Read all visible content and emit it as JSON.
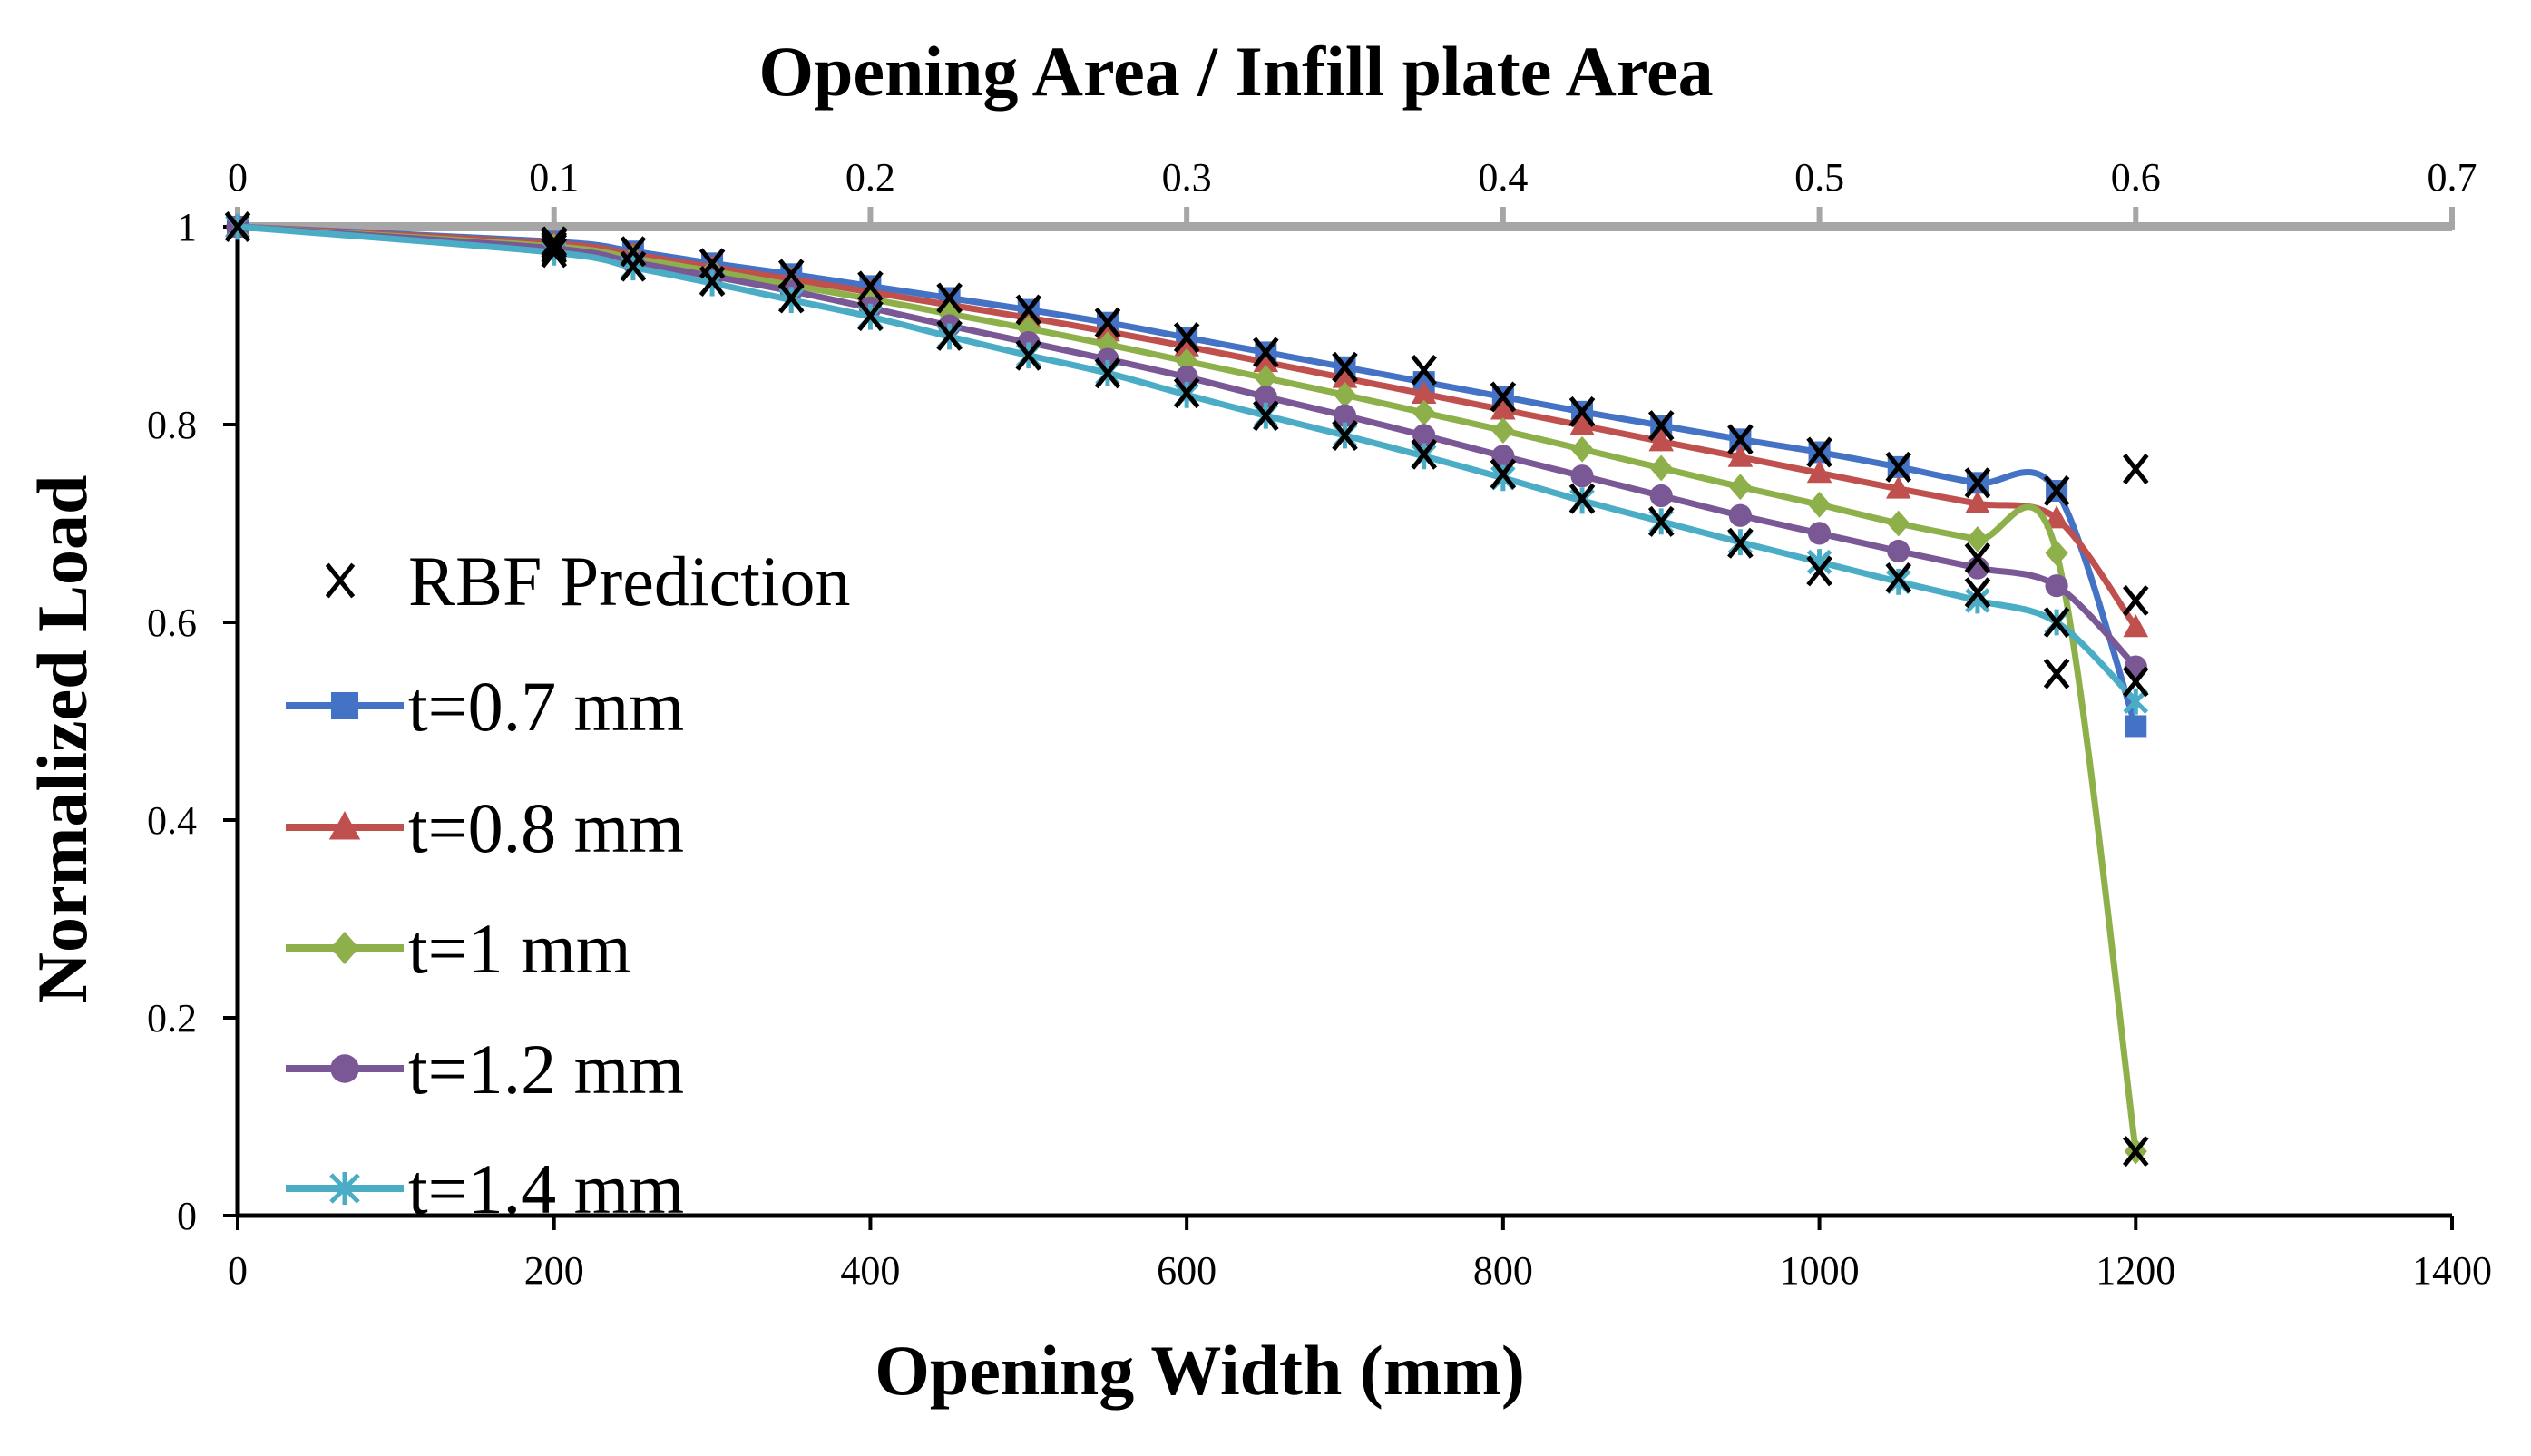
{
  "chart_data": {
    "type": "line",
    "title": "",
    "xlabel": "Opening Width (mm)",
    "ylabel": "Normalized Load",
    "x2label": "Opening Area / Infill plate Area",
    "xlim": [
      0,
      1400
    ],
    "ylim": [
      0,
      1
    ],
    "x2lim": [
      0,
      0.7
    ],
    "x_ticks": [
      "0",
      "200",
      "400",
      "600",
      "800",
      "1000",
      "1200",
      "1400"
    ],
    "y_ticks": [
      "0",
      "0.2",
      "0.4",
      "0.6",
      "0.8",
      "1"
    ],
    "x2_ticks": [
      "0",
      "0.1",
      "0.2",
      "0.3",
      "0.4",
      "0.5",
      "0.6",
      "0.7"
    ],
    "x2_tick_values": [
      0,
      0.1,
      0.2,
      0.3,
      0.4,
      0.5,
      0.6,
      0.7
    ],
    "legend_position": "left-inside",
    "x": [
      0,
      200,
      250,
      300,
      350,
      400,
      450,
      500,
      550,
      600,
      650,
      700,
      750,
      800,
      850,
      900,
      950,
      1000,
      1050,
      1100,
      1150,
      1200
    ],
    "series": [
      {
        "name": "t=0.7 mm",
        "color": "#4472c4",
        "marker": "square",
        "values": [
          1.0,
          0.985,
          0.975,
          0.963,
          0.952,
          0.94,
          0.928,
          0.916,
          0.903,
          0.888,
          0.873,
          0.858,
          0.843,
          0.828,
          0.813,
          0.799,
          0.785,
          0.772,
          0.757,
          0.741,
          0.733,
          0.495
        ]
      },
      {
        "name": "t=0.8 mm",
        "color": "#c0504d",
        "marker": "triangle",
        "values": [
          1.0,
          0.983,
          0.972,
          0.959,
          0.947,
          0.934,
          0.921,
          0.908,
          0.894,
          0.879,
          0.863,
          0.847,
          0.831,
          0.815,
          0.799,
          0.783,
          0.767,
          0.751,
          0.735,
          0.72,
          0.705,
          0.595
        ]
      },
      {
        "name": "t=1 mm",
        "color": "#8eb04a",
        "marker": "diamond",
        "values": [
          1.0,
          0.98,
          0.968,
          0.955,
          0.941,
          0.927,
          0.912,
          0.897,
          0.881,
          0.864,
          0.847,
          0.83,
          0.812,
          0.794,
          0.775,
          0.756,
          0.737,
          0.719,
          0.7,
          0.684,
          0.67,
          0.065
        ]
      },
      {
        "name": "t=1.2 mm",
        "color": "#7a5896",
        "marker": "circle",
        "values": [
          1.0,
          0.978,
          0.964,
          0.95,
          0.935,
          0.918,
          0.9,
          0.883,
          0.866,
          0.848,
          0.828,
          0.809,
          0.789,
          0.768,
          0.748,
          0.728,
          0.708,
          0.69,
          0.672,
          0.655,
          0.637,
          0.555
        ]
      },
      {
        "name": "t=1.4 mm",
        "color": "#4bacc6",
        "marker": "asterisk",
        "values": [
          1.0,
          0.974,
          0.959,
          0.943,
          0.926,
          0.909,
          0.889,
          0.87,
          0.852,
          0.83,
          0.809,
          0.789,
          0.768,
          0.746,
          0.723,
          0.702,
          0.681,
          0.661,
          0.641,
          0.622,
          0.6,
          0.52
        ]
      }
    ],
    "rbf_prediction": {
      "name": "RBF Prediction",
      "color": "#000000",
      "marker": "x",
      "points": [
        [
          0,
          1.0
        ],
        [
          200,
          0.985
        ],
        [
          200,
          0.983
        ],
        [
          200,
          0.98
        ],
        [
          200,
          0.978
        ],
        [
          200,
          0.974
        ],
        [
          250,
          0.975
        ],
        [
          250,
          0.96
        ],
        [
          300,
          0.963
        ],
        [
          300,
          0.945
        ],
        [
          350,
          0.952
        ],
        [
          350,
          0.928
        ],
        [
          400,
          0.94
        ],
        [
          400,
          0.91
        ],
        [
          450,
          0.928
        ],
        [
          450,
          0.89
        ],
        [
          500,
          0.916
        ],
        [
          500,
          0.87
        ],
        [
          550,
          0.903
        ],
        [
          550,
          0.852
        ],
        [
          600,
          0.888
        ],
        [
          600,
          0.832
        ],
        [
          650,
          0.873
        ],
        [
          650,
          0.809
        ],
        [
          700,
          0.858
        ],
        [
          700,
          0.789
        ],
        [
          750,
          0.855
        ],
        [
          750,
          0.77
        ],
        [
          800,
          0.828
        ],
        [
          800,
          0.75
        ],
        [
          850,
          0.813
        ],
        [
          850,
          0.725
        ],
        [
          900,
          0.799
        ],
        [
          900,
          0.702
        ],
        [
          950,
          0.785
        ],
        [
          950,
          0.68
        ],
        [
          1000,
          0.772
        ],
        [
          1000,
          0.652
        ],
        [
          1050,
          0.757
        ],
        [
          1050,
          0.645
        ],
        [
          1100,
          0.741
        ],
        [
          1100,
          0.665
        ],
        [
          1100,
          0.63
        ],
        [
          1150,
          0.733
        ],
        [
          1150,
          0.6
        ],
        [
          1150,
          0.548
        ],
        [
          1200,
          0.755
        ],
        [
          1200,
          0.622
        ],
        [
          1200,
          0.54
        ],
        [
          1200,
          0.065
        ]
      ]
    }
  }
}
